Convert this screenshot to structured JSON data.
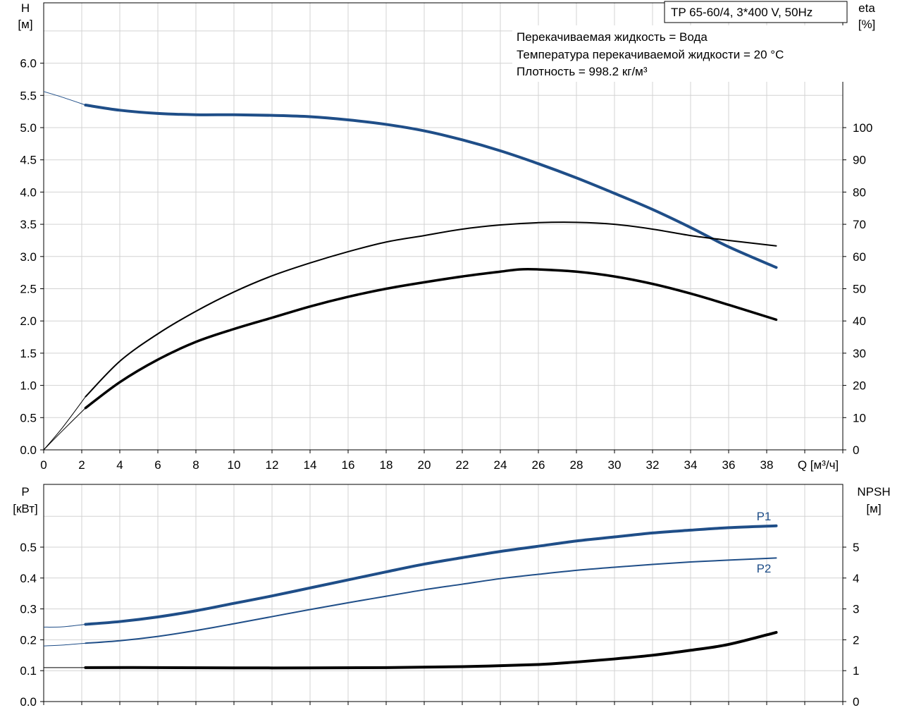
{
  "info": {
    "model": "TP 65-60/4, 3*400 V, 50Hz",
    "lines": [
      "Перекачиваемая жидкость = Вода",
      "Температура перекачиваемой жидкости = 20 °C",
      "Плотность = 998.2 кг/м³"
    ]
  },
  "colors": {
    "blue": "#1f4e88",
    "black": "#000000",
    "grid": "#d3d3d3"
  },
  "chart_data": [
    {
      "type": "line",
      "xlabel": "Q [м³/ч]",
      "ylabel_top": "H",
      "ylabel_unit": "[м]",
      "y2label_top": "eta",
      "y2label_unit": "[%]",
      "xlim": [
        0,
        42
      ],
      "ylim": [
        0,
        6.6
      ],
      "y2lim": [
        0,
        132
      ],
      "xticks": [
        "0",
        "2",
        "4",
        "6",
        "8",
        "10",
        "12",
        "14",
        "16",
        "18",
        "20",
        "22",
        "24",
        "26",
        "28",
        "30",
        "32",
        "34",
        "36",
        "38"
      ],
      "yticks": [
        "0.0",
        "0.5",
        "1.0",
        "1.5",
        "2.0",
        "2.5",
        "3.0",
        "3.5",
        "4.0",
        "4.5",
        "5.0",
        "5.5",
        "6.0"
      ],
      "y2ticks": [
        "0",
        "10",
        "20",
        "30",
        "40",
        "50",
        "60",
        "70",
        "80",
        "90",
        "100"
      ],
      "grid": true,
      "series": [
        {
          "key": "H",
          "axis": "left",
          "color": "#1f4e88",
          "points": [
            [
              2.2,
              5.35
            ],
            [
              4,
              5.27
            ],
            [
              6,
              5.22
            ],
            [
              8,
              5.2
            ],
            [
              10,
              5.2
            ],
            [
              12,
              5.19
            ],
            [
              14,
              5.17
            ],
            [
              16,
              5.12
            ],
            [
              18,
              5.05
            ],
            [
              20,
              4.95
            ],
            [
              22,
              4.81
            ],
            [
              24,
              4.64
            ],
            [
              26,
              4.44
            ],
            [
              28,
              4.22
            ],
            [
              30,
              3.98
            ],
            [
              32,
              3.73
            ],
            [
              34,
              3.45
            ],
            [
              36,
              3.15
            ],
            [
              38.5,
              2.83
            ]
          ],
          "extrapolated": [
            [
              0,
              5.56
            ],
            [
              1,
              5.47
            ],
            [
              2.2,
              5.35
            ]
          ]
        },
        {
          "key": "eta_total",
          "axis": "right",
          "color": "#000000",
          "points": [
            [
              2.2,
              13
            ],
            [
              4,
              21
            ],
            [
              6,
              28
            ],
            [
              8,
              33.5
            ],
            [
              10,
              37.5
            ],
            [
              12,
              41
            ],
            [
              14,
              44.5
            ],
            [
              16,
              47.5
            ],
            [
              18,
              50
            ],
            [
              20,
              52
            ],
            [
              22,
              53.8
            ],
            [
              24,
              55.3
            ],
            [
              25,
              56
            ],
            [
              26,
              56
            ],
            [
              28,
              55.3
            ],
            [
              30,
              53.8
            ],
            [
              32,
              51.5
            ],
            [
              34,
              48.5
            ],
            [
              36,
              45
            ],
            [
              38.5,
              40.4
            ]
          ],
          "extrapolated": [
            [
              0,
              0
            ],
            [
              1,
              6
            ],
            [
              2.2,
              13
            ]
          ]
        },
        {
          "key": "eta_hydraulic",
          "axis": "right",
          "color": "#000000",
          "points": [
            [
              2.2,
              16.5
            ],
            [
              4,
              27.5
            ],
            [
              6,
              36
            ],
            [
              8,
              43
            ],
            [
              10,
              49
            ],
            [
              12,
              54
            ],
            [
              14,
              58
            ],
            [
              16,
              61.5
            ],
            [
              18,
              64.5
            ],
            [
              20,
              66.5
            ],
            [
              22,
              68.5
            ],
            [
              24,
              69.8
            ],
            [
              26,
              70.5
            ],
            [
              28,
              70.6
            ],
            [
              30,
              70
            ],
            [
              32,
              68.5
            ],
            [
              34,
              66.5
            ],
            [
              36,
              65
            ],
            [
              38.5,
              63.3
            ]
          ],
          "extrapolated": [
            [
              0,
              0
            ],
            [
              1,
              7
            ],
            [
              2.2,
              16.5
            ]
          ]
        }
      ]
    },
    {
      "type": "line",
      "xlabel": "",
      "ylabel_top": "P",
      "ylabel_unit": "[кВт]",
      "y2label_top": "NPSH",
      "y2label_unit": "[м]",
      "xlim": [
        0,
        42
      ],
      "ylim": [
        0,
        0.6
      ],
      "y2lim": [
        0,
        6
      ],
      "yticks": [
        "0.0",
        "0.1",
        "0.2",
        "0.3",
        "0.4",
        "0.5"
      ],
      "y2ticks": [
        "0",
        "1",
        "2",
        "3",
        "4",
        "5"
      ],
      "grid": true,
      "series": [
        {
          "key": "P1",
          "name": "P1",
          "axis": "left",
          "color": "#1f4e88",
          "points": [
            [
              2.2,
              0.25
            ],
            [
              4,
              0.259
            ],
            [
              6,
              0.274
            ],
            [
              8,
              0.294
            ],
            [
              10,
              0.318
            ],
            [
              12,
              0.342
            ],
            [
              14,
              0.368
            ],
            [
              16,
              0.394
            ],
            [
              18,
              0.42
            ],
            [
              20,
              0.445
            ],
            [
              22,
              0.466
            ],
            [
              24,
              0.486
            ],
            [
              26,
              0.503
            ],
            [
              28,
              0.52
            ],
            [
              30,
              0.533
            ],
            [
              32,
              0.546
            ],
            [
              34,
              0.555
            ],
            [
              36,
              0.563
            ],
            [
              38.5,
              0.569
            ]
          ],
          "extrapolated": [
            [
              0,
              0.241
            ],
            [
              1,
              0.242
            ],
            [
              2.2,
              0.25
            ]
          ]
        },
        {
          "key": "P2",
          "name": "P2",
          "axis": "left",
          "color": "#1f4e88",
          "points": [
            [
              2.2,
              0.189
            ],
            [
              4,
              0.197
            ],
            [
              6,
              0.211
            ],
            [
              8,
              0.23
            ],
            [
              10,
              0.252
            ],
            [
              12,
              0.275
            ],
            [
              14,
              0.298
            ],
            [
              16,
              0.32
            ],
            [
              18,
              0.341
            ],
            [
              20,
              0.362
            ],
            [
              22,
              0.38
            ],
            [
              24,
              0.398
            ],
            [
              26,
              0.412
            ],
            [
              28,
              0.425
            ],
            [
              30,
              0.435
            ],
            [
              32,
              0.444
            ],
            [
              34,
              0.452
            ],
            [
              36,
              0.458
            ],
            [
              38.5,
              0.465
            ]
          ],
          "extrapolated": [
            [
              0,
              0.18
            ],
            [
              1,
              0.183
            ],
            [
              2.2,
              0.189
            ]
          ]
        },
        {
          "key": "NPSH",
          "axis": "right",
          "color": "#000000",
          "points": [
            [
              2.2,
              1.1
            ],
            [
              6,
              1.1
            ],
            [
              10,
              1.09
            ],
            [
              14,
              1.09
            ],
            [
              18,
              1.1
            ],
            [
              22,
              1.13
            ],
            [
              26,
              1.2
            ],
            [
              28,
              1.28
            ],
            [
              30,
              1.38
            ],
            [
              32,
              1.5
            ],
            [
              34,
              1.66
            ],
            [
              36,
              1.85
            ],
            [
              38.5,
              2.24
            ]
          ],
          "extrapolated": [
            [
              0,
              1.1
            ],
            [
              2.2,
              1.1
            ]
          ]
        }
      ]
    }
  ]
}
